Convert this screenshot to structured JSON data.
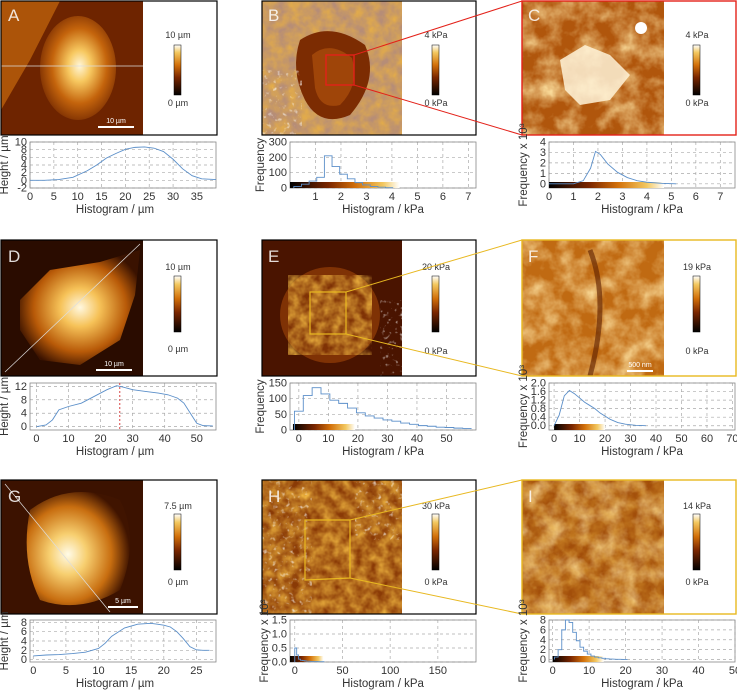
{
  "figure": {
    "rows": [
      {
        "panels": [
          {
            "label": "A",
            "colorbar_max": "10 µm",
            "colorbar_min": "0 µm",
            "scalebar": "10 µm",
            "chart": {
              "type": "line",
              "ylabel": "Height / µm",
              "xlabel": "Histogram / µm",
              "xticks": [
                "0",
                "5",
                "10",
                "15",
                "20",
                "25",
                "30",
                "35"
              ],
              "yticks": [
                "-2",
                "0",
                "2",
                "4",
                "6",
                "8",
                "10"
              ],
              "xlim": [
                0,
                39
              ],
              "ylim": [
                -2,
                10
              ],
              "x": [
                0,
                3,
                6,
                9,
                12,
                14,
                16,
                18,
                20,
                22,
                24,
                26,
                28,
                30,
                32,
                34,
                36,
                39
              ],
              "y": [
                0,
                0,
                0.2,
                0.8,
                2.5,
                4,
                5.8,
                7,
                8.1,
                8.6,
                8.7,
                8.4,
                7.5,
                5.5,
                3,
                1.2,
                0.4,
                0.2
              ]
            }
          },
          {
            "label": "B",
            "colorbar_max": "4 kPa",
            "colorbar_min": "0 kPa",
            "chart": {
              "type": "bar",
              "ylabel": "Frequency",
              "xlabel": "Histogram / kPa",
              "xticks": [
                "1",
                "2",
                "3",
                "4",
                "5",
                "6",
                "7"
              ],
              "yticks": [
                "0",
                "100",
                "200",
                "300"
              ],
              "xlim": [
                0,
                7.3
              ],
              "ylim": [
                0,
                300
              ],
              "x": [
                0.3,
                0.6,
                0.9,
                1.2,
                1.5,
                1.8,
                2.1,
                2.4,
                2.7,
                3.0,
                3.3,
                3.6,
                3.9
              ],
              "y": [
                10,
                25,
                45,
                70,
                210,
                140,
                90,
                60,
                35,
                20,
                10,
                5,
                2
              ],
              "colorbar_range": [
                0,
                4.3
              ]
            }
          },
          {
            "label": "C",
            "colorbar_max": "4 kPa",
            "colorbar_min": "0 kPa",
            "chart": {
              "type": "line",
              "ylabel": "Frequency x 10³",
              "xlabel": "Histogram / kPa",
              "xticks": [
                "0",
                "1",
                "2",
                "3",
                "4",
                "5",
                "6",
                "7"
              ],
              "yticks": [
                "0",
                "1",
                "2",
                "3",
                "4"
              ],
              "xlim": [
                0,
                7.6
              ],
              "ylim": [
                -0.4,
                4
              ],
              "x": [
                0,
                1,
                1.4,
                1.7,
                1.9,
                2.1,
                2.4,
                2.8,
                3.2,
                3.6,
                4,
                4.6,
                5.2
              ],
              "y": [
                0,
                0,
                0.3,
                1.5,
                3.1,
                2.8,
                1.9,
                1.1,
                0.6,
                0.3,
                0.15,
                0.05,
                0
              ],
              "colorbar_range": [
                0,
                4.7
              ]
            }
          }
        ]
      },
      {
        "panels": [
          {
            "label": "D",
            "colorbar_max": "10 µm",
            "colorbar_min": "0 µm",
            "scalebar": "10 µm",
            "chart": {
              "type": "line",
              "ylabel": "Height / µm",
              "xlabel": "Histogram / µm",
              "xticks": [
                "0",
                "10",
                "20",
                "30",
                "40",
                "50"
              ],
              "yticks": [
                "0",
                "4",
                "8",
                "12"
              ],
              "xlim": [
                -2,
                56
              ],
              "ylim": [
                -1,
                13
              ],
              "x": [
                0,
                3,
                5,
                7,
                10,
                14,
                18,
                22,
                25,
                27,
                30,
                34,
                38,
                41,
                44,
                46,
                48,
                50,
                52,
                55
              ],
              "y": [
                0,
                0.5,
                2,
                5,
                6,
                7,
                9,
                11,
                12.2,
                11.8,
                11,
                10.5,
                10,
                9.5,
                8.5,
                7,
                4,
                1,
                0.3,
                0.2
              ],
              "marker_x": 26
            }
          },
          {
            "label": "E",
            "colorbar_max": "20 kPa",
            "colorbar_min": "0 kPa",
            "chart": {
              "type": "bar",
              "ylabel": "Frequency",
              "xlabel": "Histogram / kPa",
              "xticks": [
                "0",
                "10",
                "20",
                "30",
                "40",
                "50"
              ],
              "yticks": [
                "0",
                "50",
                "100",
                "150"
              ],
              "xlim": [
                -3,
                60
              ],
              "ylim": [
                0,
                150
              ],
              "x": [
                0,
                3,
                6,
                9,
                12,
                15,
                18,
                21,
                24,
                27,
                30,
                33,
                36,
                39,
                42,
                45,
                48,
                51,
                54,
                57
              ],
              "y": [
                60,
                110,
                135,
                115,
                95,
                85,
                70,
                55,
                45,
                38,
                32,
                28,
                22,
                18,
                14,
                12,
                9,
                8,
                6,
                5
              ],
              "colorbar_range": [
                -2,
                19
              ]
            }
          },
          {
            "label": "F",
            "colorbar_max": "19 kPa",
            "colorbar_min": "0 kPa",
            "scalebar": "500 nm",
            "chart": {
              "type": "line",
              "ylabel": "Frequency x 10³",
              "xlabel": "Histogram / kPa",
              "xticks": [
                "0",
                "10",
                "20",
                "30",
                "40",
                "50",
                "60",
                "70"
              ],
              "yticks": [
                "0.0",
                "0.4",
                "0.8",
                "1.2",
                "1.6",
                "2.0"
              ],
              "xlim": [
                -2,
                71
              ],
              "ylim": [
                -0.2,
                2
              ],
              "x": [
                0,
                2,
                4,
                6,
                8,
                10,
                12,
                14,
                16,
                18,
                20,
                22,
                25,
                28,
                32,
                36
              ],
              "y": [
                0,
                0.5,
                1.4,
                1.65,
                1.5,
                1.3,
                1.1,
                0.95,
                0.8,
                0.6,
                0.45,
                0.3,
                0.15,
                0.07,
                0.02,
                0
              ],
              "colorbar_range": [
                0,
                20
              ]
            }
          }
        ]
      },
      {
        "panels": [
          {
            "label": "G",
            "colorbar_max": "7.5 µm",
            "colorbar_min": "0 µm",
            "scalebar": "5 µm",
            "chart": {
              "type": "line",
              "ylabel": "Height / µm",
              "xlabel": "Histogram / µm",
              "xticks": [
                "0",
                "5",
                "10",
                "15",
                "20",
                "25"
              ],
              "yticks": [
                "0",
                "2",
                "4",
                "6",
                "8"
              ],
              "xlim": [
                -0.5,
                28
              ],
              "ylim": [
                -0.5,
                8.5
              ],
              "x": [
                0,
                2,
                4,
                6,
                8,
                10,
                11,
                12,
                14,
                16,
                18,
                19,
                20,
                21,
                22,
                23,
                24,
                25,
                26,
                27
              ],
              "y": [
                0.8,
                1,
                1.1,
                1.3,
                1.6,
                2.4,
                3.5,
                5,
                6.8,
                7.6,
                7.8,
                7.6,
                7.4,
                7,
                6,
                4.5,
                2.8,
                2.1,
                2,
                2
              ],
              "marker_x": null
            }
          },
          {
            "label": "H",
            "colorbar_max": "30 kPa",
            "colorbar_min": "0 kPa",
            "chart": {
              "type": "bar",
              "ylabel": "Frequency x 10³",
              "xlabel": "Histogram / kPa",
              "xticks": [
                "0",
                "50",
                "100",
                "150"
              ],
              "yticks": [
                "0.0",
                "0.5",
                "1.0",
                "1.5"
              ],
              "xlim": [
                -5,
                190
              ],
              "ylim": [
                0,
                1.5
              ],
              "x": [
                1,
                3,
                5,
                7,
                9,
                11,
                13,
                15,
                17,
                19,
                22,
                26,
                30
              ],
              "y": [
                0.5,
                0.25,
                0.1,
                0.06,
                0.05,
                0.04,
                0.03,
                0.03,
                0.02,
                0.02,
                0.02,
                0.01,
                0.01
              ],
              "colorbar_range": [
                -5,
                30
              ]
            }
          },
          {
            "label": "I",
            "colorbar_max": "14 kPa",
            "colorbar_min": "0 kPa",
            "chart": {
              "type": "bar",
              "ylabel": "Frequency x 10³",
              "xlabel": "Histogram / kPa",
              "xticks": [
                "0",
                "10",
                "20",
                "30",
                "40",
                "50"
              ],
              "yticks": [
                "0",
                "2",
                "4",
                "6",
                "8"
              ],
              "xlim": [
                -1,
                50
              ],
              "ylim": [
                -0.5,
                8
              ],
              "x": [
                1,
                2,
                3,
                4,
                5,
                6,
                7,
                8,
                9,
                10,
                11,
                12,
                13,
                14,
                15,
                16,
                18,
                20
              ],
              "y": [
                0.5,
                2,
                6,
                8,
                7.5,
                5.5,
                3.8,
                2.5,
                1.7,
                1.1,
                0.7,
                0.5,
                0.35,
                0.25,
                0.15,
                0.1,
                0.05,
                0.02
              ],
              "colorbar_range": [
                0,
                14
              ]
            }
          }
        ]
      }
    ]
  },
  "colors": {
    "accent_red": "#e32119",
    "accent_yellow": "#e8b820",
    "curve": "#5b8fc9"
  }
}
